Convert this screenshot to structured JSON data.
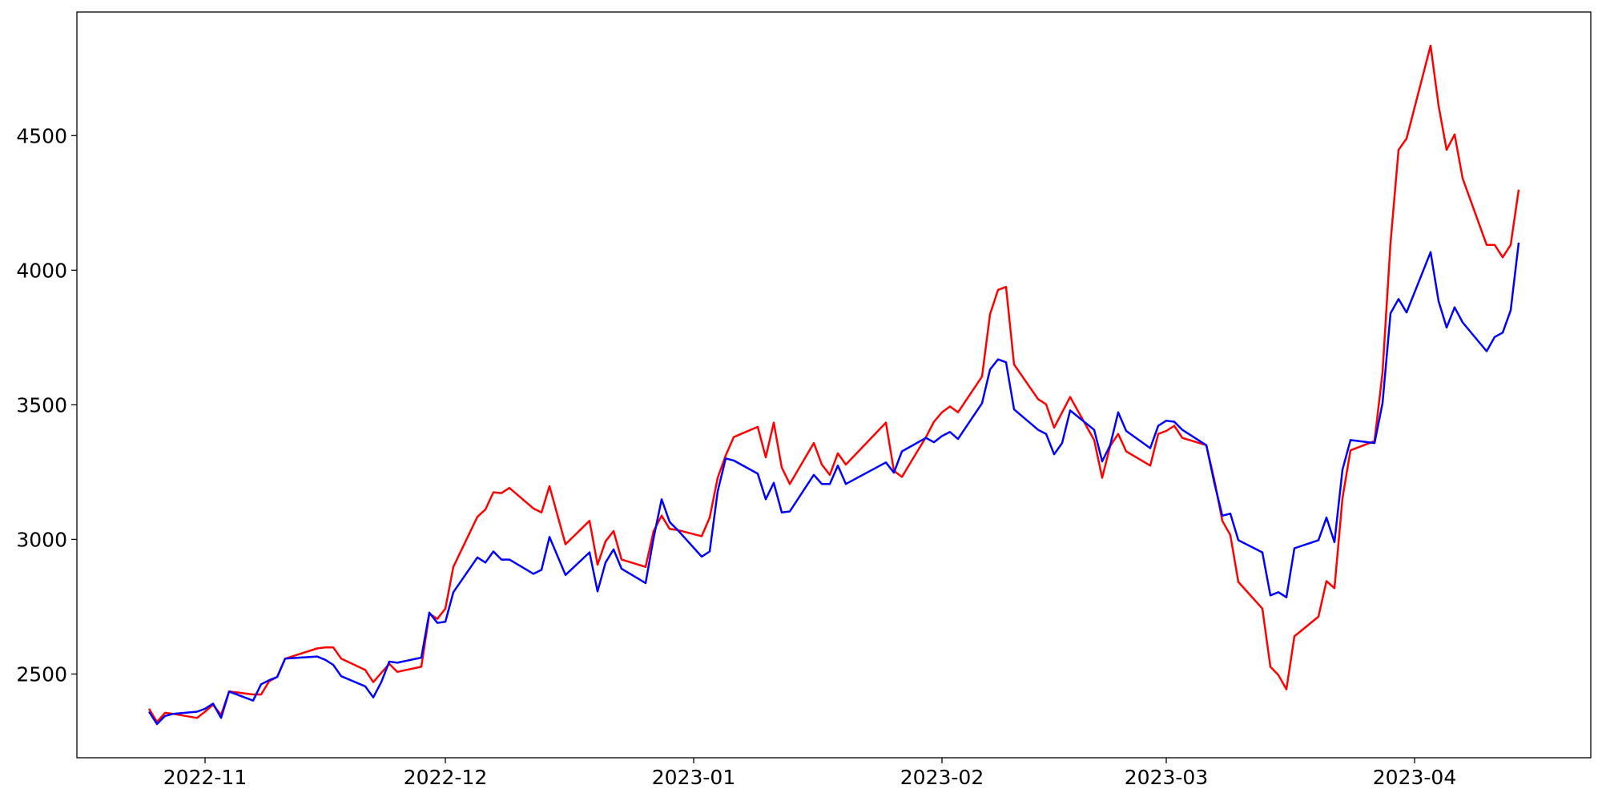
{
  "chart_data": {
    "type": "line",
    "x": [
      "2022-10-25",
      "2022-10-26",
      "2022-10-27",
      "2022-10-28",
      "2022-10-31",
      "2022-11-01",
      "2022-11-02",
      "2022-11-03",
      "2022-11-04",
      "2022-11-07",
      "2022-11-08",
      "2022-11-09",
      "2022-11-10",
      "2022-11-11",
      "2022-11-15",
      "2022-11-16",
      "2022-11-17",
      "2022-11-18",
      "2022-11-21",
      "2022-11-22",
      "2022-11-23",
      "2022-11-24",
      "2022-11-25",
      "2022-11-28",
      "2022-11-29",
      "2022-11-30",
      "2022-12-01",
      "2022-12-02",
      "2022-12-05",
      "2022-12-06",
      "2022-12-07",
      "2022-12-08",
      "2022-12-09",
      "2022-12-12",
      "2022-12-13",
      "2022-12-14",
      "2022-12-16",
      "2022-12-19",
      "2022-12-20",
      "2022-12-21",
      "2022-12-22",
      "2022-12-23",
      "2022-12-26",
      "2022-12-27",
      "2022-12-28",
      "2022-12-29",
      "2022-12-30",
      "2023-01-02",
      "2023-01-03",
      "2023-01-04",
      "2023-01-05",
      "2023-01-06",
      "2023-01-09",
      "2023-01-10",
      "2023-01-11",
      "2023-01-12",
      "2023-01-13",
      "2023-01-16",
      "2023-01-17",
      "2023-01-18",
      "2023-01-19",
      "2023-01-20",
      "2023-01-25",
      "2023-01-26",
      "2023-01-27",
      "2023-01-30",
      "2023-01-31",
      "2023-02-01",
      "2023-02-02",
      "2023-02-03",
      "2023-02-06",
      "2023-02-07",
      "2023-02-08",
      "2023-02-09",
      "2023-02-10",
      "2023-02-13",
      "2023-02-14",
      "2023-02-15",
      "2023-02-16",
      "2023-02-17",
      "2023-02-20",
      "2023-02-21",
      "2023-02-22",
      "2023-02-23",
      "2023-02-24",
      "2023-02-27",
      "2023-02-28",
      "2023-03-01",
      "2023-03-02",
      "2023-03-03",
      "2023-03-06",
      "2023-03-07",
      "2023-03-08",
      "2023-03-09",
      "2023-03-10",
      "2023-03-13",
      "2023-03-14",
      "2023-03-15",
      "2023-03-16",
      "2023-03-17",
      "2023-03-20",
      "2023-03-21",
      "2023-03-22",
      "2023-03-23",
      "2023-03-24",
      "2023-03-27",
      "2023-03-28",
      "2023-03-29",
      "2023-03-30",
      "2023-03-31",
      "2023-04-03",
      "2023-04-04",
      "2023-04-05",
      "2023-04-06",
      "2023-04-07",
      "2023-04-10",
      "2023-04-11",
      "2023-04-12",
      "2023-04-13",
      "2023-04-14"
    ],
    "series": [
      {
        "color": "#ff0000",
        "values": [
          2371,
          2322,
          2356,
          2352,
          2337,
          2360,
          2386,
          2348,
          2435,
          2424,
          2424,
          2473,
          2489,
          2557,
          2595,
          2599,
          2599,
          2557,
          2515,
          2470,
          2504,
          2538,
          2508,
          2527,
          2724,
          2705,
          2743,
          2898,
          3084,
          3111,
          3175,
          3172,
          3191,
          3115,
          3100,
          3198,
          2982,
          3069,
          2906,
          2993,
          3031,
          2925,
          2898,
          3031,
          3088,
          3039,
          3035,
          3012,
          3081,
          3229,
          3312,
          3380,
          3418,
          3305,
          3434,
          3267,
          3206,
          3358,
          3278,
          3240,
          3320,
          3278,
          3434,
          3255,
          3232,
          3380,
          3437,
          3472,
          3494,
          3472,
          3605,
          3836,
          3927,
          3938,
          3650,
          3521,
          3502,
          3415,
          3472,
          3529,
          3369,
          3229,
          3347,
          3392,
          3327,
          3274,
          3392,
          3403,
          3422,
          3377,
          3350,
          3221,
          3069,
          3016,
          2842,
          2743,
          2527,
          2496,
          2443,
          2640,
          2713,
          2845,
          2819,
          3153,
          3331,
          3365,
          3620,
          4102,
          4447,
          4489,
          4834,
          4611,
          4447,
          4504,
          4341,
          4094,
          4094,
          4048,
          4094,
          4299
        ]
      },
      {
        "color": "#0000ff",
        "values": [
          2360,
          2314,
          2344,
          2352,
          2360,
          2371,
          2390,
          2337,
          2435,
          2401,
          2462,
          2477,
          2489,
          2557,
          2565,
          2553,
          2534,
          2492,
          2454,
          2413,
          2470,
          2546,
          2542,
          2561,
          2728,
          2690,
          2694,
          2804,
          2933,
          2914,
          2955,
          2925,
          2925,
          2872,
          2887,
          3009,
          2868,
          2952,
          2807,
          2914,
          2963,
          2891,
          2838,
          3005,
          3149,
          3065,
          3035,
          2936,
          2955,
          3179,
          3301,
          3293,
          3244,
          3149,
          3210,
          3100,
          3104,
          3240,
          3206,
          3206,
          3274,
          3206,
          3286,
          3248,
          3327,
          3377,
          3361,
          3384,
          3399,
          3373,
          3506,
          3631,
          3669,
          3658,
          3483,
          3407,
          3392,
          3316,
          3358,
          3479,
          3407,
          3290,
          3350,
          3472,
          3403,
          3339,
          3422,
          3441,
          3437,
          3407,
          3350,
          3210,
          3088,
          3096,
          2997,
          2952,
          2792,
          2804,
          2785,
          2967,
          2997,
          3081,
          2990,
          3259,
          3369,
          3358,
          3506,
          3840,
          3893,
          3843,
          4067,
          3885,
          3787,
          3862,
          3806,
          3699,
          3752,
          3768,
          3851,
          4102
        ]
      }
    ],
    "xlim": [
      "2022-10-16",
      "2023-04-23"
    ],
    "xticks": [
      {
        "value": "2022-11-01",
        "label": "2022-11"
      },
      {
        "value": "2022-12-01",
        "label": "2022-12"
      },
      {
        "value": "2023-01-01",
        "label": "2023-01"
      },
      {
        "value": "2023-02-01",
        "label": "2023-02"
      },
      {
        "value": "2023-03-01",
        "label": "2023-03"
      },
      {
        "value": "2023-04-01",
        "label": "2023-04"
      }
    ],
    "ylim": [
      2189,
      4959
    ],
    "yticks": [
      2500,
      3000,
      3500,
      4000,
      4500
    ],
    "grid": false
  }
}
